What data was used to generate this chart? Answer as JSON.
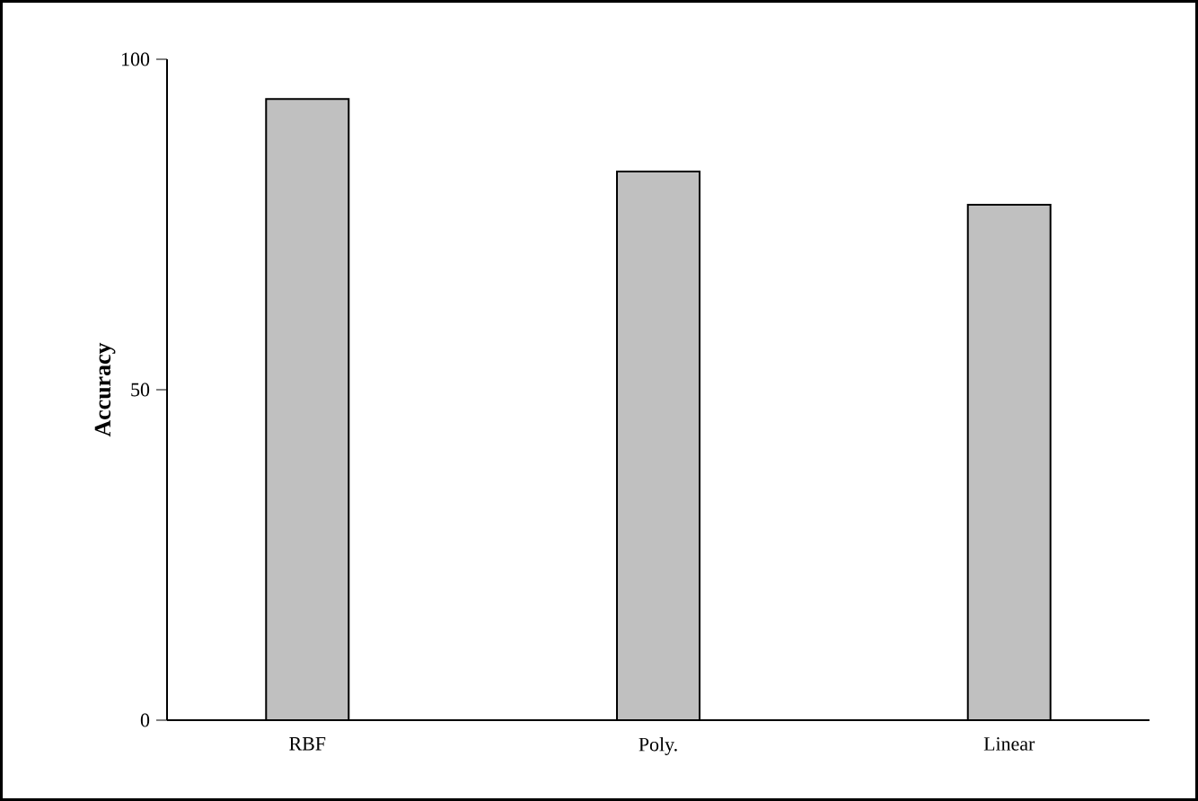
{
  "chart_data": {
    "type": "bar",
    "ylabel": "Accuracy",
    "categories": [
      "RBF",
      "Poly.",
      "Linear"
    ],
    "values": [
      94,
      83,
      78
    ],
    "color": "#c0c0c0",
    "ylim": [
      0,
      100
    ],
    "yticks": [
      0,
      50,
      100
    ]
  }
}
